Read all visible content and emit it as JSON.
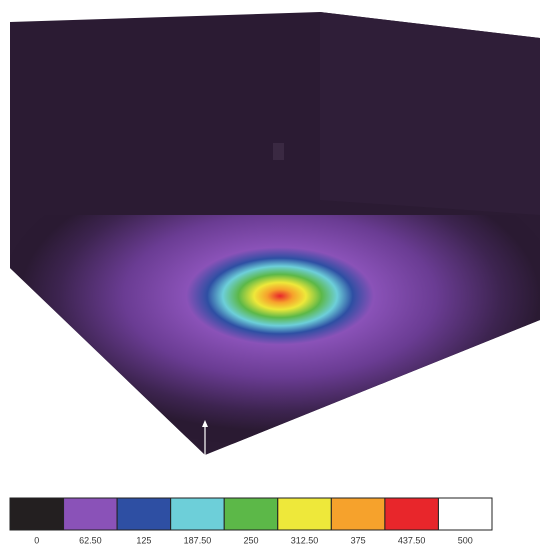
{
  "legend": {
    "items": [
      {
        "label": "0",
        "color": "#231f20"
      },
      {
        "label": "62.50",
        "color": "#8a52b8"
      },
      {
        "label": "125",
        "color": "#2e4fa3"
      },
      {
        "label": "187.50",
        "color": "#6dcfd9"
      },
      {
        "label": "250",
        "color": "#5cb848"
      },
      {
        "label": "312.50",
        "color": "#eee83a"
      },
      {
        "label": "375",
        "color": "#f6a22c"
      },
      {
        "label": "437.50",
        "color": "#e8262b"
      },
      {
        "label": "500",
        "color": "#ffffff"
      }
    ]
  }
}
